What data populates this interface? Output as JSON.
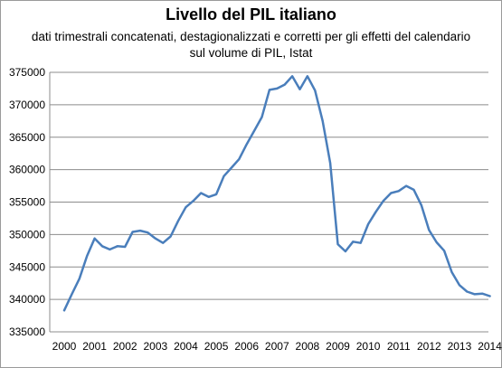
{
  "chart_data": {
    "type": "line",
    "title": "Livello del PIL italiano",
    "subtitle": [
      "dati trimestrali concatenati, destagionalizzati e corretti per gli effetti del calendario",
      "sul volume di PIL, Istat"
    ],
    "xlabel": "",
    "ylabel": "",
    "ylim": [
      335000,
      375000
    ],
    "yticks": [
      "335000",
      "340000",
      "345000",
      "350000",
      "355000",
      "360000",
      "365000",
      "370000",
      "375000"
    ],
    "xticks": [
      "2000",
      "2001",
      "2002",
      "2003",
      "2004",
      "2005",
      "2006",
      "2007",
      "2008",
      "2009",
      "2010",
      "2011",
      "2012",
      "2013",
      "2014"
    ],
    "grid": "horizontal",
    "legend": "none",
    "series": [
      {
        "color": "#4a7ebb",
        "values": [
          338300,
          340800,
          343200,
          346700,
          349400,
          348200,
          347700,
          348200,
          348100,
          350400,
          350600,
          350300,
          349400,
          348700,
          349700,
          352100,
          354200,
          355200,
          356400,
          355800,
          356200,
          359000,
          360300,
          361600,
          363900,
          366000,
          368100,
          372300,
          372500,
          373100,
          374400,
          372400,
          374400,
          372200,
          367500,
          361000,
          348500,
          347400,
          348900,
          348700,
          351600,
          353500,
          355200,
          356400,
          356700,
          357500,
          356900,
          354500,
          350700,
          348800,
          347500,
          344200,
          342200,
          341200,
          340800,
          340900,
          340500
        ]
      }
    ]
  }
}
